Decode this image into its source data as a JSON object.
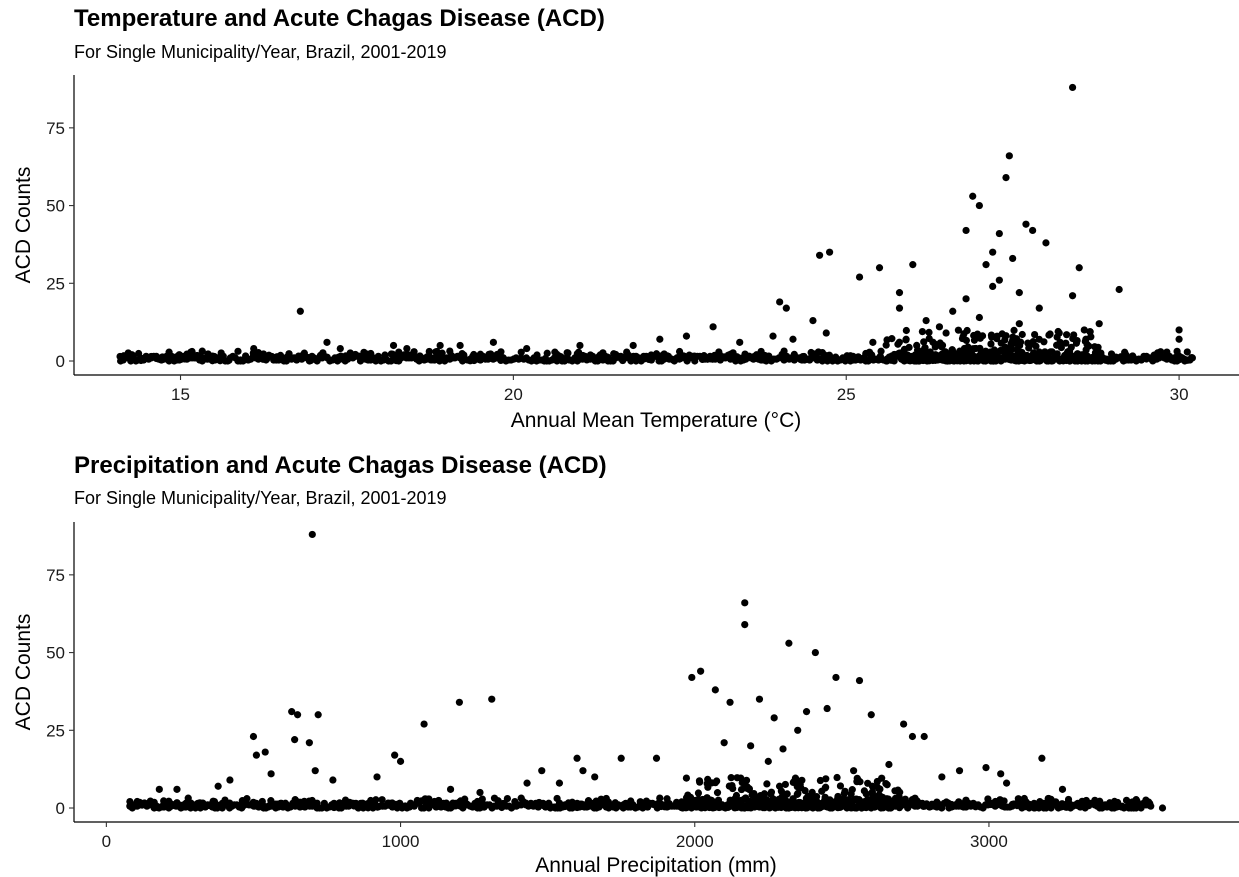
{
  "chart_data": [
    {
      "type": "scatter",
      "title": "Temperature and Acute Chagas Disease (ACD)",
      "subtitle": "For Single Municipality/Year, Brazil, 2001-2019",
      "xlabel": "Annual Mean Temperature (°C)",
      "ylabel": "ACD Counts",
      "xlim": [
        13.4,
        30.9
      ],
      "ylim": [
        -4.5,
        92
      ],
      "xticks": [
        15,
        20,
        25,
        30
      ],
      "yticks": [
        0,
        25,
        50,
        75
      ],
      "grid": false,
      "marker_color": "#000000",
      "points": [
        [
          28.4,
          88
        ],
        [
          27.45,
          66
        ],
        [
          27.4,
          59
        ],
        [
          26.9,
          53
        ],
        [
          27.0,
          50
        ],
        [
          27.7,
          44
        ],
        [
          27.8,
          42
        ],
        [
          26.8,
          42
        ],
        [
          27.3,
          41
        ],
        [
          28.0,
          38
        ],
        [
          24.75,
          35
        ],
        [
          24.6,
          34
        ],
        [
          27.2,
          35
        ],
        [
          27.5,
          33
        ],
        [
          27.1,
          31
        ],
        [
          26.0,
          31
        ],
        [
          25.5,
          30
        ],
        [
          28.5,
          30
        ],
        [
          25.2,
          27
        ],
        [
          27.3,
          26
        ],
        [
          29.1,
          23
        ],
        [
          25.8,
          22
        ],
        [
          28.4,
          21
        ],
        [
          24.0,
          19
        ],
        [
          24.1,
          17
        ],
        [
          16.8,
          16
        ],
        [
          25.8,
          17
        ],
        [
          26.6,
          16
        ],
        [
          27.9,
          17
        ],
        [
          24.5,
          13
        ],
        [
          23.0,
          11
        ],
        [
          26.2,
          13
        ],
        [
          28.8,
          12
        ],
        [
          30.0,
          10
        ],
        [
          24.7,
          9
        ],
        [
          22.6,
          8
        ],
        [
          23.9,
          8
        ],
        [
          25.9,
          7
        ],
        [
          30.0,
          7
        ],
        [
          17.2,
          6
        ],
        [
          16.1,
          4
        ],
        [
          19.2,
          5
        ],
        [
          19.7,
          6
        ],
        [
          18.9,
          5
        ],
        [
          18.2,
          5
        ],
        [
          18.4,
          4
        ],
        [
          17.4,
          4
        ],
        [
          21.0,
          5
        ],
        [
          20.2,
          4
        ],
        [
          22.2,
          7
        ],
        [
          21.8,
          5
        ],
        [
          23.4,
          6
        ],
        [
          24.2,
          7
        ],
        [
          27.0,
          14
        ],
        [
          27.6,
          12
        ],
        [
          26.4,
          11
        ],
        [
          28.2,
          9
        ],
        [
          26.8,
          20
        ],
        [
          27.2,
          24
        ],
        [
          27.6,
          22
        ],
        [
          26.5,
          9
        ],
        [
          28.6,
          7
        ],
        [
          25.4,
          6
        ],
        [
          29.2,
          2
        ],
        [
          29.6,
          1
        ]
      ],
      "baseline_band": {
        "x_from": 14.1,
        "x_to": 30.2,
        "level_values": [
          0,
          0.3,
          0.6,
          1.0,
          1.5
        ]
      },
      "cluster": {
        "x_from": 25.6,
        "x_to": 28.8,
        "y_max": 10
      }
    },
    {
      "type": "scatter",
      "title": "Precipitation and Acute Chagas Disease (ACD)",
      "subtitle": "For Single Municipality/Year, Brazil, 2001-2019",
      "xlabel": "Annual Precipitation (mm)",
      "ylabel": "ACD Counts",
      "xlim": [
        -110,
        3850
      ],
      "ylim": [
        -4.5,
        92
      ],
      "xticks": [
        0,
        1000,
        2000,
        3000
      ],
      "yticks": [
        0,
        25,
        50,
        75
      ],
      "grid": false,
      "marker_color": "#000000",
      "points": [
        [
          700,
          88
        ],
        [
          2170,
          66
        ],
        [
          2170,
          59
        ],
        [
          2320,
          53
        ],
        [
          2410,
          50
        ],
        [
          2020,
          44
        ],
        [
          1990,
          42
        ],
        [
          2480,
          42
        ],
        [
          2560,
          41
        ],
        [
          2070,
          38
        ],
        [
          1310,
          35
        ],
        [
          1200,
          34
        ],
        [
          2220,
          35
        ],
        [
          2120,
          34
        ],
        [
          630,
          31
        ],
        [
          650,
          30
        ],
        [
          720,
          30
        ],
        [
          2380,
          31
        ],
        [
          2600,
          30
        ],
        [
          2270,
          29
        ],
        [
          1080,
          27
        ],
        [
          2710,
          27
        ],
        [
          500,
          23
        ],
        [
          2740,
          23
        ],
        [
          2780,
          23
        ],
        [
          640,
          22
        ],
        [
          690,
          21
        ],
        [
          2100,
          21
        ],
        [
          2190,
          20
        ],
        [
          510,
          17
        ],
        [
          540,
          18
        ],
        [
          980,
          17
        ],
        [
          1000,
          15
        ],
        [
          1600,
          16
        ],
        [
          1750,
          16
        ],
        [
          1870,
          16
        ],
        [
          3180,
          16
        ],
        [
          2450,
          32
        ],
        [
          2350,
          25
        ],
        [
          2300,
          19
        ],
        [
          1480,
          12
        ],
        [
          1620,
          12
        ],
        [
          1540,
          8
        ],
        [
          770,
          9
        ],
        [
          710,
          12
        ],
        [
          2900,
          12
        ],
        [
          2990,
          13
        ],
        [
          3040,
          11
        ],
        [
          3060,
          8
        ],
        [
          3250,
          6
        ],
        [
          180,
          6
        ],
        [
          240,
          6
        ],
        [
          380,
          7
        ],
        [
          420,
          9
        ],
        [
          920,
          10
        ],
        [
          1170,
          6
        ],
        [
          1270,
          5
        ],
        [
          2250,
          15
        ],
        [
          2540,
          12
        ],
        [
          2660,
          14
        ],
        [
          2840,
          10
        ],
        [
          560,
          11
        ],
        [
          1660,
          10
        ],
        [
          1430,
          8
        ],
        [
          3100,
          3
        ],
        [
          3300,
          1
        ],
        [
          3480,
          1
        ],
        [
          3590,
          0
        ]
      ],
      "baseline_band": {
        "x_from": 80,
        "x_to": 3550,
        "level_values": [
          0,
          0.3,
          0.6,
          1.0,
          1.5
        ]
      },
      "cluster": {
        "x_from": 1950,
        "x_to": 2700,
        "y_max": 10
      }
    }
  ]
}
